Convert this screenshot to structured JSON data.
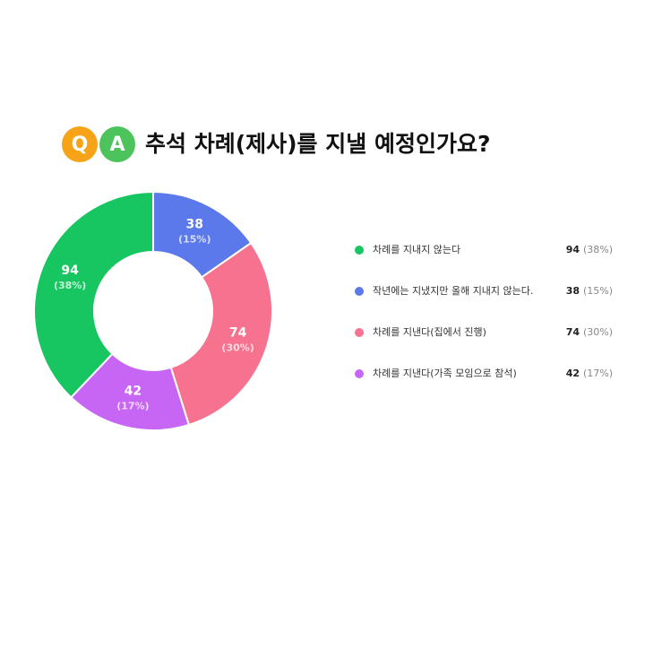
{
  "chart_data": {
    "type": "donut",
    "badges": [
      "Q",
      "A"
    ],
    "title": "추석 차례(제사)를 지낼 예정인가요?",
    "categories": [
      "차례를 지내지 않는다",
      "작년에는 지냈지만 올해 지내지 않는다.",
      "차례를 지낸다(집에서 진행)",
      "차례를 지낸다(가족 모임으로 참석)"
    ],
    "values": [
      94,
      38,
      74,
      42
    ],
    "shares": [
      38,
      15,
      30,
      17
    ],
    "share_labels": [
      "(38%)",
      "(15%)",
      "(30%)",
      "(17%)"
    ],
    "colors": [
      "#18c661",
      "#5b79ea",
      "#f7728f",
      "#c766f4"
    ]
  }
}
